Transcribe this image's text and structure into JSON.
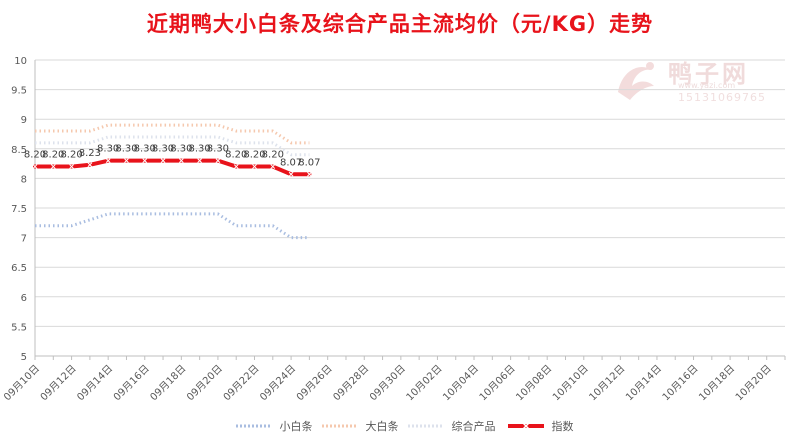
{
  "chart_data": {
    "type": "line",
    "title": "近期鸭大小白条及综合产品主流均价（元/KG）走势",
    "xlabel": "",
    "ylabel": "",
    "ylim": [
      5,
      10
    ],
    "y_ticks": [
      "5",
      "5.5",
      "6",
      "6.5",
      "7",
      "7.5",
      "8",
      "8.5",
      "9",
      "9.5",
      "10"
    ],
    "x_range": [
      "2023-09-10",
      "2023-10-21"
    ],
    "x_tick_labels": [
      "09月10日",
      "09月12日",
      "09月14日",
      "09月16日",
      "09月18日",
      "09月20日",
      "09月22日",
      "09月24日",
      "09月26日",
      "09月28日",
      "09月30日",
      "10月02日",
      "10月04日",
      "10月06日",
      "10月08日",
      "10月10日",
      "10月12日",
      "10月14日",
      "10月16日",
      "10月18日",
      "10月20日"
    ],
    "x": [
      "09-10",
      "09-11",
      "09-12",
      "09-13",
      "09-14",
      "09-15",
      "09-16",
      "09-17",
      "09-18",
      "09-19",
      "09-20",
      "09-21",
      "09-22",
      "09-23",
      "09-24",
      "09-25"
    ],
    "grid": "horizontal",
    "legend_position": "bottom",
    "series": [
      {
        "name": "小白条",
        "style": "dotted",
        "color": "#a9bde0",
        "values": [
          7.2,
          7.2,
          7.2,
          7.3,
          7.4,
          7.4,
          7.4,
          7.4,
          7.4,
          7.4,
          7.4,
          7.2,
          7.2,
          7.2,
          7.0,
          7.0
        ]
      },
      {
        "name": "大白条",
        "style": "dotted",
        "color": "#f5c8ae",
        "values": [
          8.8,
          8.8,
          8.8,
          8.8,
          8.9,
          8.9,
          8.9,
          8.9,
          8.9,
          8.9,
          8.9,
          8.8,
          8.8,
          8.8,
          8.6,
          8.6
        ]
      },
      {
        "name": "综合产品",
        "style": "dotted",
        "color": "#dde2ec",
        "values": [
          8.6,
          8.6,
          8.6,
          8.6,
          8.7,
          8.7,
          8.7,
          8.7,
          8.7,
          8.7,
          8.7,
          8.6,
          8.6,
          8.6,
          8.4,
          8.4
        ]
      },
      {
        "name": "指数",
        "style": "solid",
        "color": "#e8131b",
        "values": [
          8.2,
          8.2,
          8.2,
          8.23,
          8.3,
          8.3,
          8.3,
          8.3,
          8.3,
          8.3,
          8.3,
          8.2,
          8.2,
          8.2,
          8.07,
          8.07
        ],
        "data_labels": [
          "8.20",
          "8.20",
          "8.20",
          "8.23",
          "8.30",
          "8.30",
          "8.30",
          "8.30",
          "8.30",
          "8.30",
          "8.30",
          "8.20",
          "8.20",
          "8.20",
          "8.07",
          "8.07"
        ]
      }
    ]
  },
  "watermark": {
    "name": "鸭子网",
    "url": "www.yazi.com",
    "phone": "15131069765"
  }
}
